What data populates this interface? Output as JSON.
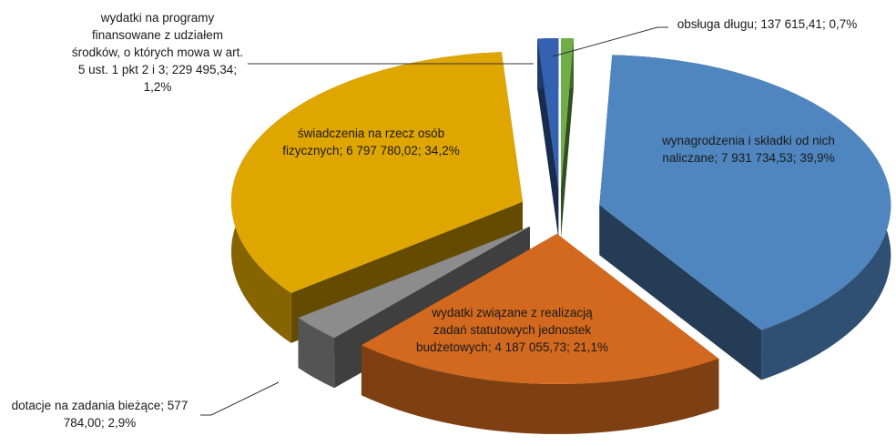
{
  "chart_data": {
    "type": "pie3d",
    "categories": [
      "obsługa długu",
      "wynagrodzenia i składki od nich naliczane",
      "wydatki związane z realizacją zadań statutowych jednostek budżetowych",
      "dotacje na zadania bieżące",
      "świadczenia na rzecz osób fizycznych",
      "wydatki na programy finansowane z udziałem środków, o których mowa w art. 5 ust. 1 pkt 2 i 3"
    ],
    "values": [
      137615.41,
      7931734.53,
      4187055.73,
      577784.0,
      6797780.02,
      229495.34
    ],
    "value_labels": [
      "137 615,41",
      "7 931 734,53",
      "4 187 055,73",
      "577 784,00",
      "6 797 780,02",
      "229 495,34"
    ],
    "percents": [
      0.7,
      39.9,
      21.1,
      2.9,
      34.2,
      1.2
    ],
    "percent_labels": [
      "0,7%",
      "39,9%",
      "21,1%",
      "2,9%",
      "34,2%",
      "1,2%"
    ],
    "label_separator": "; ",
    "colors": [
      "#70ad47",
      "#4f86c0",
      "#d2691e",
      "#8c8c8c",
      "#e0a600",
      "#3461b0"
    ]
  }
}
